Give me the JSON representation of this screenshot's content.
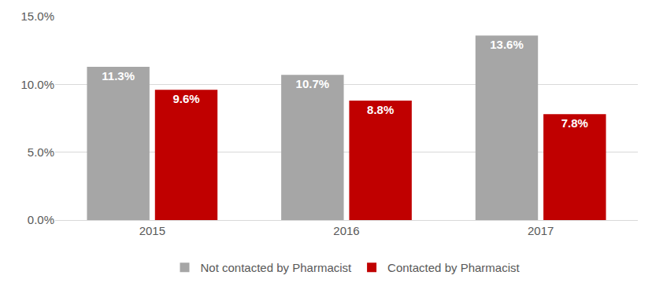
{
  "chart_data": {
    "type": "bar",
    "categories": [
      "2015",
      "2016",
      "2017"
    ],
    "series": [
      {
        "name": "Not contacted by Pharmacist",
        "color": "#a6a6a6",
        "values": [
          11.3,
          10.7,
          13.6
        ],
        "value_labels": [
          "11.3%",
          "10.7%",
          "13.6%"
        ]
      },
      {
        "name": "Contacted by Pharmacist",
        "color": "#c00000",
        "values": [
          9.6,
          8.8,
          7.8
        ],
        "value_labels": [
          "9.6%",
          "8.8%",
          "7.8%"
        ]
      }
    ],
    "ylim": [
      0,
      15
    ],
    "yticks": [
      {
        "value": 0,
        "label": "0.0%"
      },
      {
        "value": 5,
        "label": "5.0%"
      },
      {
        "value": 10,
        "label": "10.0%"
      },
      {
        "value": 15,
        "label": "15.0%"
      }
    ],
    "grid": true,
    "legend": "bottom",
    "data_labels": true
  }
}
